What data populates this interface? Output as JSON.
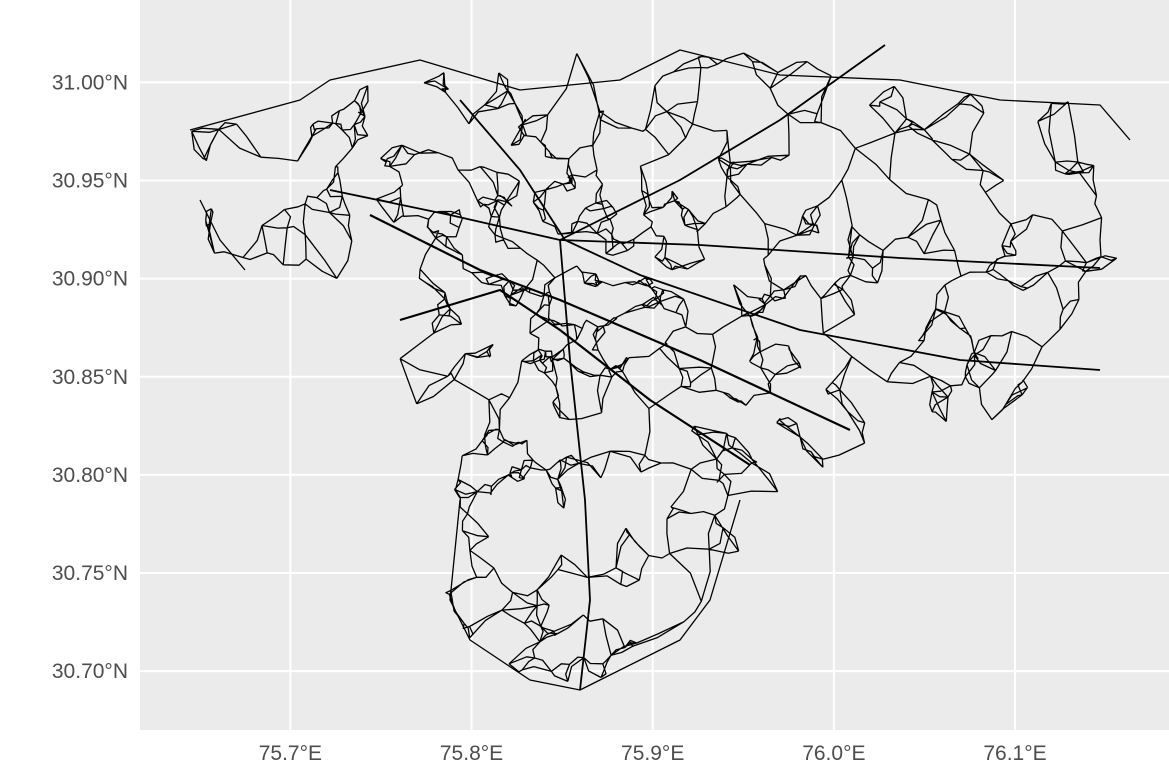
{
  "map": {
    "xlim": [
      75.617,
      76.185
    ],
    "ylim": [
      30.67,
      31.042
    ],
    "xticks": [
      {
        "value": 75.7,
        "label": "75.7°E"
      },
      {
        "value": 75.8,
        "label": "75.8°E"
      },
      {
        "value": 75.9,
        "label": "75.9°E"
      },
      {
        "value": 76.0,
        "label": "76.0°E"
      },
      {
        "value": 76.1,
        "label": "76.1°E"
      }
    ],
    "yticks": [
      {
        "value": 30.7,
        "label": "30.70°N"
      },
      {
        "value": 30.75,
        "label": "30.75°N"
      },
      {
        "value": 30.8,
        "label": "30.80°N"
      },
      {
        "value": 30.85,
        "label": "30.85°N"
      },
      {
        "value": 30.9,
        "label": "30.90°N"
      },
      {
        "value": 30.95,
        "label": "30.95°N"
      },
      {
        "value": 31.0,
        "label": "31.00°N"
      }
    ],
    "grid": true
  }
}
